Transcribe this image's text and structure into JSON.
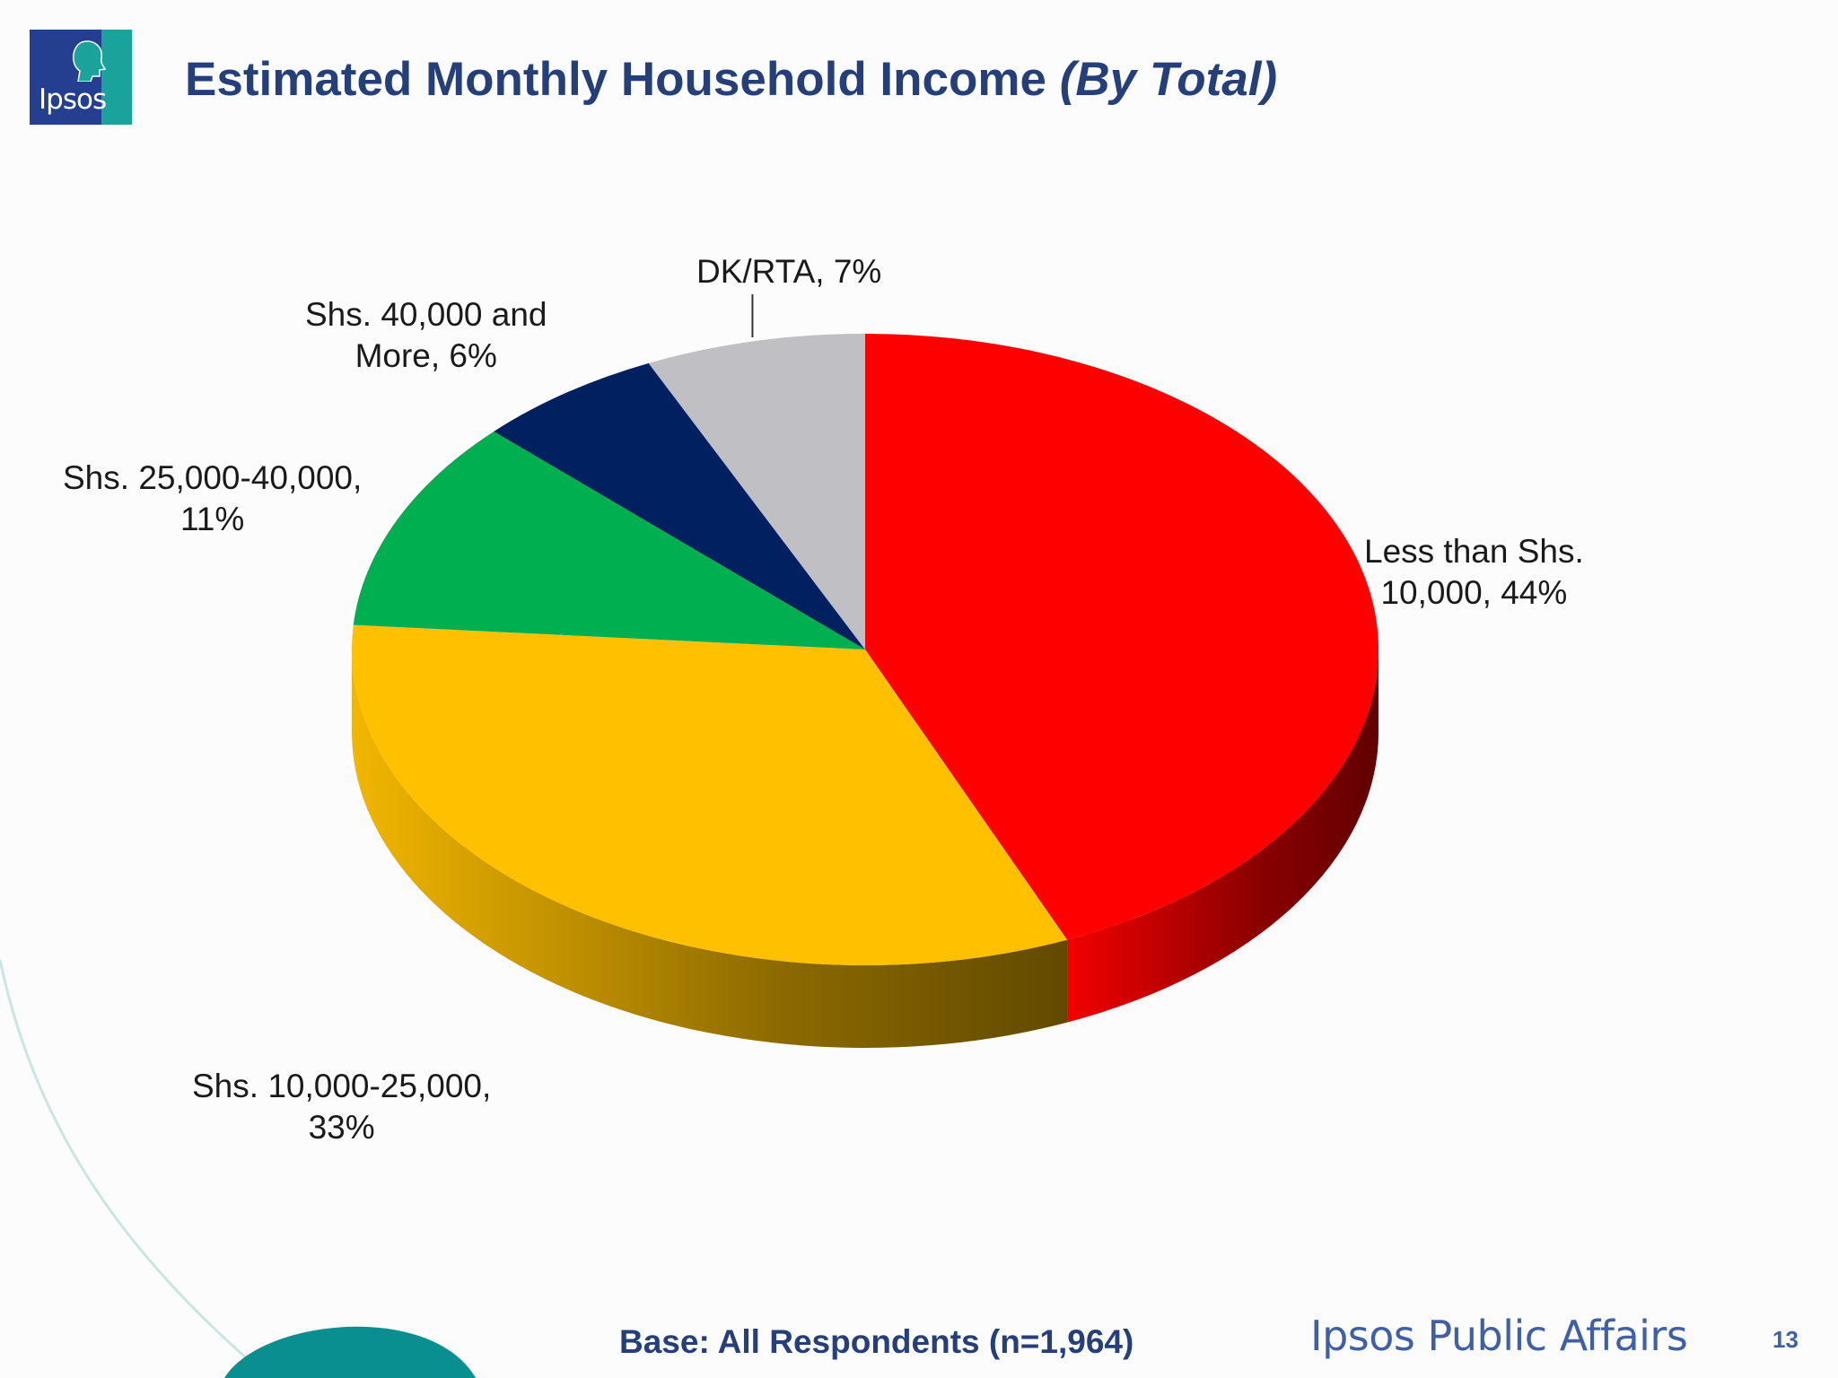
{
  "header": {
    "title": "Estimated Monthly Household Income",
    "title_qualifier": "(By Total)",
    "logo_text": "Ipsos"
  },
  "chart_data": {
    "type": "pie",
    "categories": [
      "Less than Shs. 10,000",
      "Shs. 10,000-25,000",
      "Shs. 25,000-40,000",
      "Shs. 40,000 and More",
      "DK/RTA"
    ],
    "values": [
      44,
      33,
      11,
      6,
      7
    ],
    "colors": [
      "#ff0000",
      "#ffc000",
      "#00b050",
      "#002060",
      "#c0bfc4"
    ],
    "labels": [
      [
        "Less than Shs.",
        "10,000, 44%"
      ],
      [
        "Shs. 10,000-25,000,",
        "33%"
      ],
      [
        "Shs. 25,000-40,000,",
        "11%"
      ],
      [
        "Shs. 40,000 and",
        "More, 6%"
      ],
      [
        "DK/RTA, 7%"
      ]
    ],
    "style": "3d-tilted",
    "legend": "none"
  },
  "footer": {
    "base_note": "Base: All Respondents (n=1,964)",
    "brand": "Ipsos Public Affairs",
    "page_number": "13"
  }
}
